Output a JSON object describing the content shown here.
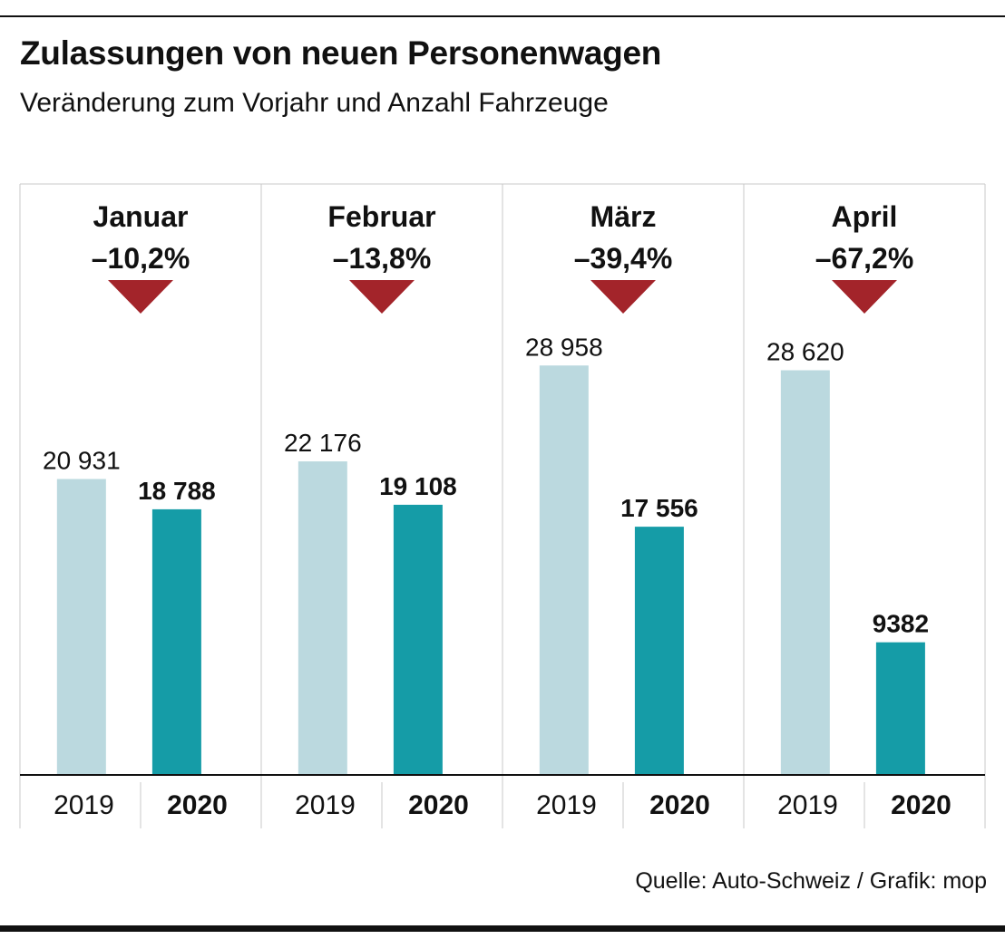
{
  "header": {
    "title": "Zulassungen von neuen Personenwagen",
    "subtitle": "Veränderung zum Vorjahr und Anzahl Fahrzeuge"
  },
  "footer": {
    "source": "Quelle: Auto-Schweiz / Grafik: mop"
  },
  "colors": {
    "bar_2019": "#bbd9df",
    "bar_2020": "#159ca7",
    "arrow": "#a3242a",
    "grid": "#c8c8c8",
    "text": "#111111"
  },
  "chart_data": {
    "type": "bar",
    "title": "Zulassungen von neuen Personenwagen",
    "subtitle": "Veränderung zum Vorjahr und Anzahl Fahrzeuge",
    "categories": [
      "Januar",
      "Februar",
      "März",
      "April"
    ],
    "series": [
      {
        "name": "2019",
        "values": [
          20931,
          22176,
          28958,
          28620
        ],
        "labels": [
          "20 931",
          "22 176",
          "28 958",
          "28 620"
        ]
      },
      {
        "name": "2020",
        "values": [
          18788,
          19108,
          17556,
          9382
        ],
        "labels": [
          "18 788",
          "19 108",
          "17 556",
          "9382"
        ]
      }
    ],
    "changes": [
      "–10,2%",
      "–13,8%",
      "–39,4%",
      "–67,2%"
    ],
    "ylim": [
      0,
      30000
    ],
    "xlabel": "",
    "ylabel": "",
    "grid": false
  }
}
